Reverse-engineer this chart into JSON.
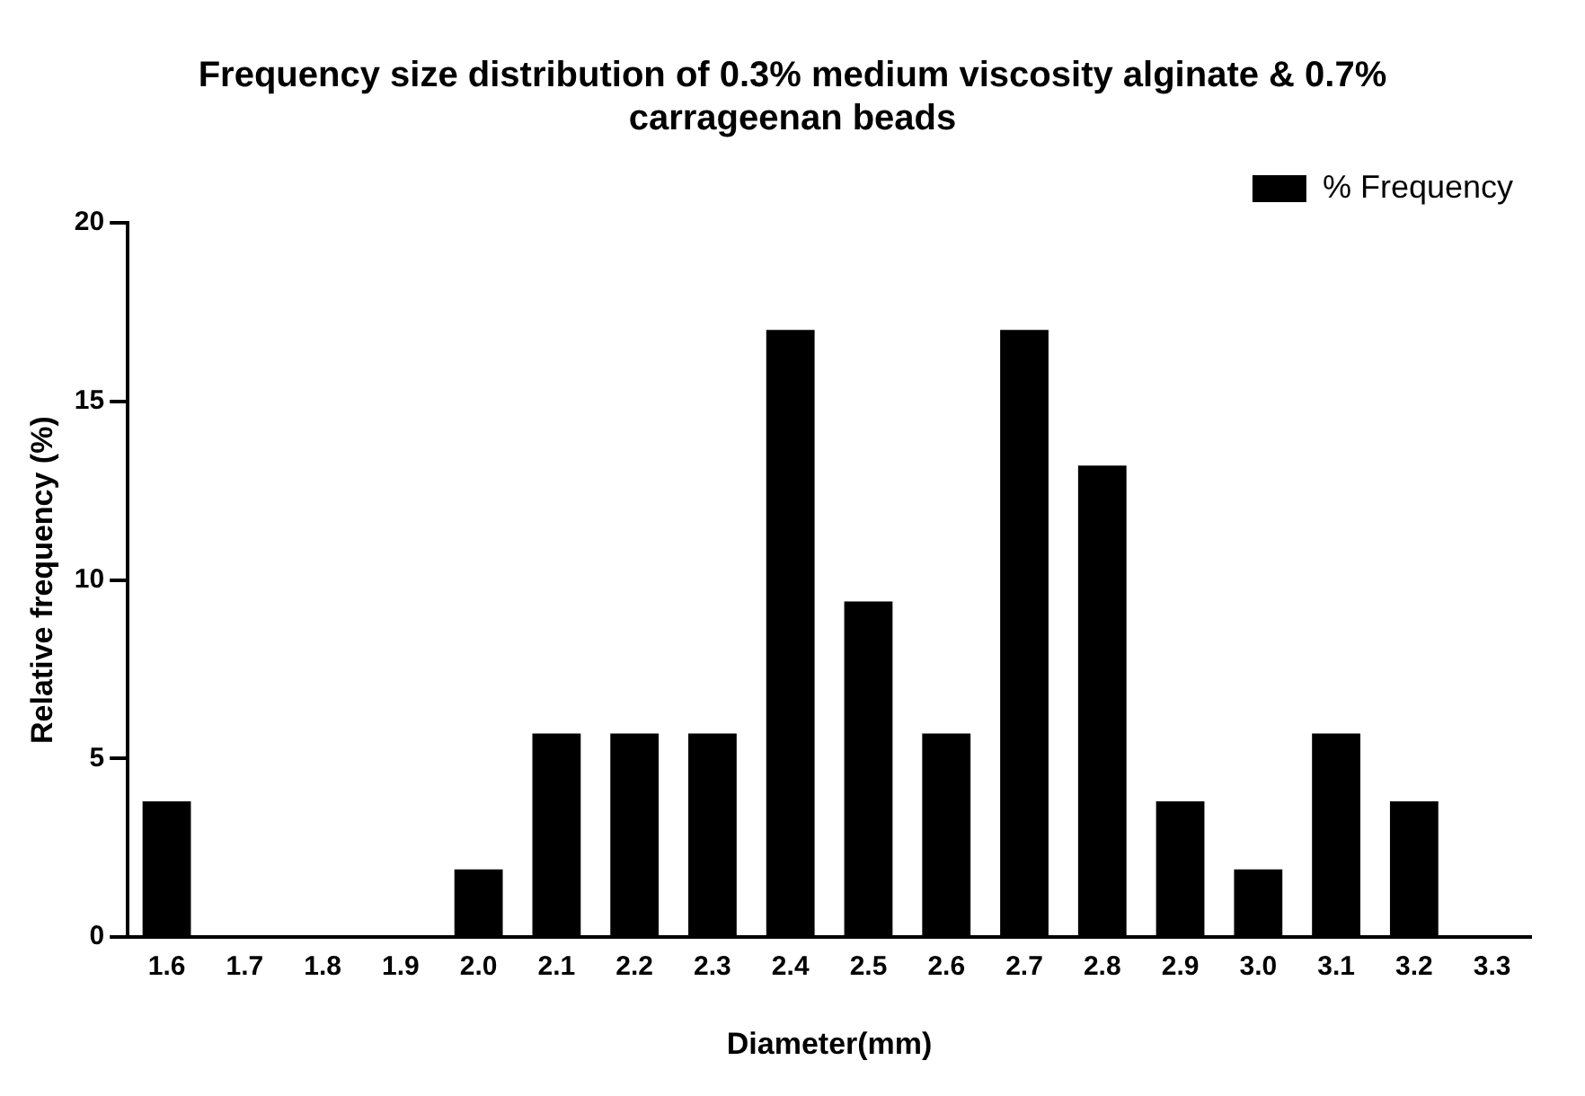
{
  "chart_data": {
    "type": "bar",
    "title": "Frequency size distribution of 0.3% medium viscosity alginate & 0.7% carrageenan beads",
    "xlabel": "Diameter(mm)",
    "ylabel": "Relative frequency (%)",
    "categories": [
      "1.6",
      "1.7",
      "1.8",
      "1.9",
      "2.0",
      "2.1",
      "2.2",
      "2.3",
      "2.4",
      "2.5",
      "2.6",
      "2.7",
      "2.8",
      "2.9",
      "3.0",
      "3.1",
      "3.2",
      "3.3"
    ],
    "series": [
      {
        "name": "% Frequency",
        "color": "#000000",
        "values": [
          3.8,
          0,
          0,
          0,
          1.9,
          5.7,
          5.7,
          5.7,
          17,
          9.4,
          5.7,
          17,
          13.2,
          3.8,
          1.9,
          5.7,
          3.8,
          0
        ]
      }
    ],
    "ylim": [
      0,
      20
    ],
    "yticks": [
      0,
      5,
      10,
      15,
      20
    ],
    "grid": false,
    "legend": "top right"
  }
}
